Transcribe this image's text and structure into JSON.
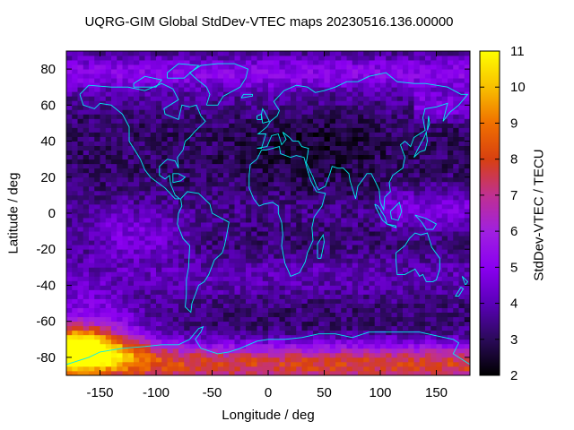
{
  "chart_data": {
    "type": "heatmap",
    "title": "UQRG-GIM Global StdDev-VTEC maps 20230516.136.00000",
    "xlabel": "Longitude / deg",
    "ylabel": "Latitude / deg",
    "colorbar_label": "StdDev-VTEC / TECU",
    "xlim": [
      -180,
      180
    ],
    "ylim": [
      -90,
      90
    ],
    "x_ticks": [
      -150,
      -100,
      -50,
      0,
      50,
      100,
      150
    ],
    "y_ticks": [
      -80,
      -60,
      -40,
      -20,
      0,
      20,
      40,
      60,
      80
    ],
    "colorbar_range": [
      2,
      11
    ],
    "colorbar_ticks": [
      2,
      3,
      4,
      5,
      6,
      7,
      8,
      9,
      10,
      11
    ],
    "colormap": [
      "#000000",
      "#2b0a5a",
      "#5a00b8",
      "#8a00f0",
      "#a020e0",
      "#c03090",
      "#d84010",
      "#f07000",
      "#f8c000",
      "#ffff00"
    ],
    "coastline_color": "#00f0f0",
    "grid": false,
    "field_description": [
      {
        "region": "Southern high latitudes, longitudes -180 to -120",
        "value": 11
      },
      {
        "region": "Southern ocean band south of -60",
        "value": 8
      },
      {
        "region": "Northern high latitudes band north of 60",
        "value": 5
      },
      {
        "region": "Equatorial Pacific band east of 100",
        "value": 5
      },
      {
        "region": "Mid-latitude continents",
        "value": 3
      }
    ]
  }
}
